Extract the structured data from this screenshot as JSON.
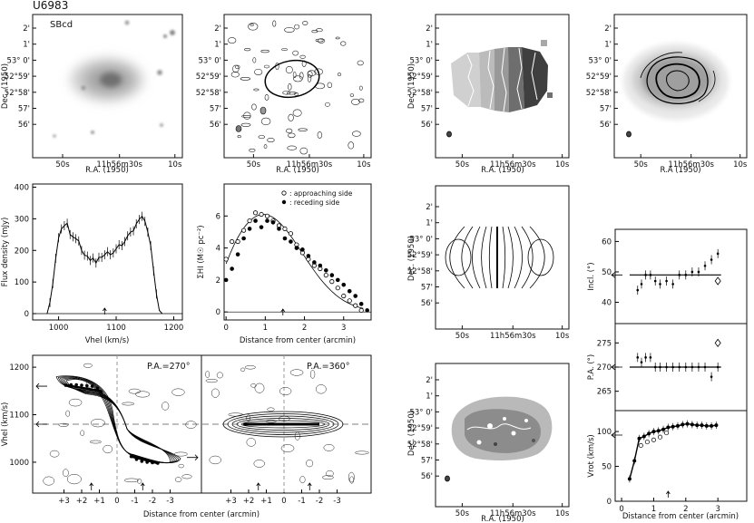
{
  "figure": {
    "galaxy": "U6983",
    "type_label": "SBcd",
    "ra_label": "R.A. (1950)",
    "ra_label_alt": "R.A (1950)",
    "dec_label": "Dec. (1950)",
    "dec_ticks": [
      "2'",
      "1'",
      "53° 0'",
      "52°59'",
      "52°58'",
      "57'",
      "56'"
    ],
    "ra_ticks": [
      "50s",
      "11h56m30s",
      "10s"
    ],
    "flux_label": "Flux density (mJy)",
    "vhel_label": "Vhel (km/s)",
    "dist_label": "Distance from center (arcmin)",
    "sigma_label": "ΣHI (M☉ pc⁻²)",
    "legend": [
      ": approaching side",
      ": receding side"
    ],
    "pa_left": "P.A.=270°",
    "pa_right": "P.A.=360°",
    "incl_label": "Incl. (°)",
    "pa_label": "P.A. (°)",
    "vrot_label": "Vrot (km/s)"
  },
  "chart_data": [
    {
      "type": "line",
      "panel": "global HI profile",
      "xlabel": "Vhel (km/s)",
      "ylabel": "Flux density (mJy)",
      "xlim": [
        955,
        1215
      ],
      "ylim": [
        -20,
        410
      ],
      "x_ticks": [
        1000,
        1100,
        1200
      ],
      "y_ticks": [
        0,
        100,
        200,
        300,
        400
      ],
      "x": [
        980,
        985,
        990,
        995,
        1000,
        1005,
        1010,
        1015,
        1020,
        1025,
        1030,
        1035,
        1040,
        1045,
        1050,
        1055,
        1060,
        1065,
        1070,
        1075,
        1080,
        1085,
        1090,
        1095,
        1100,
        1105,
        1110,
        1115,
        1120,
        1125,
        1130,
        1135,
        1140,
        1145,
        1150,
        1155,
        1160,
        1165,
        1170,
        1175,
        1180
      ],
      "values": [
        0,
        35,
        95,
        175,
        240,
        268,
        278,
        286,
        250,
        243,
        237,
        230,
        200,
        185,
        182,
        168,
        176,
        160,
        178,
        178,
        186,
        196,
        186,
        192,
        205,
        218,
        215,
        228,
        246,
        258,
        262,
        284,
        298,
        308,
        292,
        258,
        215,
        135,
        62,
        10,
        0
      ],
      "marker_x": 1080
    },
    {
      "type": "scatter",
      "panel": "HI surface density",
      "xlabel": "Distance from center (arcmin)",
      "ylabel": "ΣHI (M☉ pc⁻²)",
      "xlim": [
        -0.05,
        3.7
      ],
      "ylim": [
        -0.5,
        8
      ],
      "x_ticks": [
        0,
        1,
        2,
        3
      ],
      "y_ticks": [
        0,
        2,
        4,
        6
      ],
      "series": [
        {
          "name": "approaching side",
          "x": [
            0.0,
            0.15,
            0.3,
            0.45,
            0.6,
            0.75,
            0.9,
            1.05,
            1.2,
            1.35,
            1.5,
            1.65,
            1.8,
            1.95,
            2.1,
            2.25,
            2.4,
            2.55,
            2.7,
            2.85,
            3.0,
            3.15,
            3.3,
            3.45
          ],
          "y": [
            3.3,
            4.4,
            4.4,
            5.1,
            5.7,
            6.2,
            6.1,
            6.0,
            5.7,
            5.4,
            5.2,
            4.9,
            4.2,
            3.7,
            3.3,
            2.9,
            2.7,
            2.3,
            1.9,
            1.5,
            1.0,
            0.7,
            0.4,
            0.1
          ]
        },
        {
          "name": "receding side",
          "x": [
            0.0,
            0.15,
            0.3,
            0.45,
            0.6,
            0.75,
            0.9,
            1.05,
            1.2,
            1.35,
            1.5,
            1.65,
            1.8,
            1.95,
            2.1,
            2.25,
            2.4,
            2.55,
            2.7,
            2.85,
            3.0,
            3.15,
            3.3,
            3.45,
            3.6
          ],
          "y": [
            2.0,
            2.7,
            3.6,
            4.6,
            5.2,
            5.7,
            5.3,
            5.7,
            5.6,
            5.2,
            4.6,
            4.4,
            4.0,
            3.9,
            3.5,
            3.1,
            2.9,
            2.6,
            2.3,
            2.0,
            1.7,
            1.3,
            1.0,
            0.5,
            0.1
          ]
        }
      ],
      "marker_x": 1.45
    },
    {
      "type": "scatter",
      "panel": "inclination",
      "ylabel": "Incl. (°)",
      "xlim": [
        -0.2,
        3.9
      ],
      "ylim": [
        33,
        64
      ],
      "y_ticks": [
        40,
        50,
        60
      ],
      "x": [
        0.5,
        0.62,
        0.75,
        0.9,
        1.05,
        1.2,
        1.4,
        1.6,
        1.8,
        2.0,
        2.2,
        2.4,
        2.6,
        2.8,
        3.0
      ],
      "values": [
        44,
        46,
        49,
        49,
        47,
        46,
        47,
        46,
        49,
        49,
        50,
        50,
        52,
        54,
        56
      ],
      "adopted": 49,
      "extra_diamond": [
        3.0,
        47
      ]
    },
    {
      "type": "scatter",
      "panel": "position angle",
      "ylabel": "P.A. (°)",
      "xlim": [
        -0.2,
        3.9
      ],
      "ylim": [
        261,
        279
      ],
      "y_ticks": [
        265,
        270,
        275
      ],
      "x": [
        0.5,
        0.62,
        0.75,
        0.9,
        1.05,
        1.2,
        1.4,
        1.6,
        1.8,
        2.0,
        2.2,
        2.4,
        2.6,
        2.8,
        3.0
      ],
      "values": [
        272,
        271,
        272,
        272,
        270,
        270,
        270,
        270,
        270,
        270,
        270,
        270,
        270,
        268,
        270
      ],
      "adopted": 270,
      "extra_diamond": [
        3.0,
        275
      ]
    },
    {
      "type": "line",
      "panel": "rotation curve",
      "xlabel": "Distance from center (arcmin)",
      "ylabel": "Vrot (km/s)",
      "xlim": [
        -0.2,
        3.9
      ],
      "ylim": [
        0,
        130
      ],
      "x_ticks": [
        0,
        1,
        2,
        3
      ],
      "y_ticks": [
        0,
        50,
        100
      ],
      "x": [
        0.25,
        0.4,
        0.55,
        0.7,
        0.85,
        1.0,
        1.15,
        1.3,
        1.45,
        1.6,
        1.75,
        1.9,
        2.05,
        2.2,
        2.35,
        2.5,
        2.65,
        2.8,
        2.95
      ],
      "values": [
        32,
        58,
        90,
        93,
        97,
        100,
        101,
        103,
        106,
        107,
        108,
        110,
        111,
        110,
        109,
        109,
        108,
        108,
        109
      ],
      "open_points": [
        [
          0.6,
          80
        ],
        [
          0.8,
          85
        ],
        [
          1.0,
          88
        ],
        [
          1.2,
          92
        ],
        [
          1.4,
          98
        ]
      ],
      "marker_x": 1.45
    }
  ]
}
